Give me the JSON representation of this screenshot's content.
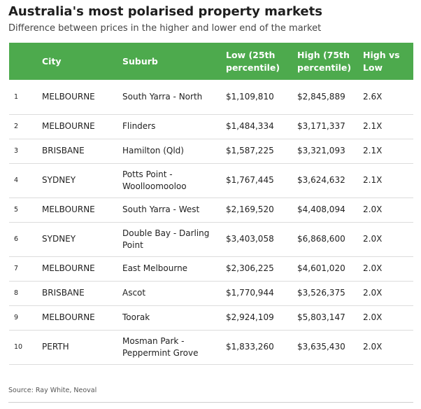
{
  "title": "Australia's most polarised property markets",
  "subtitle": "Difference between prices in the higher and lower end of the market",
  "columns": {
    "rank": "",
    "city": "City",
    "suburb": "Suburb",
    "low": "Low (25th percentile)",
    "high": "High (75th percentile)",
    "ratio": "High vs Low"
  },
  "source": "Source: Ray White, Neoval",
  "colors": {
    "header_background": "#4daa4d",
    "header_text": "#ffffff"
  },
  "chart_data": {
    "type": "table",
    "title": "Australia's most polarised property markets",
    "subtitle": "Difference between prices in the higher and lower end of the market",
    "columns": [
      "",
      "City",
      "Suburb",
      "Low (25th percentile)",
      "High (75th percentile)",
      "High vs Low"
    ],
    "rows": [
      [
        "1",
        "MELBOURNE",
        "South Yarra - North",
        "$1,109,810",
        "$2,845,889",
        "2.6X"
      ],
      [
        "2",
        "MELBOURNE",
        "Flinders",
        "$1,484,334",
        "$3,171,337",
        "2.1X"
      ],
      [
        "3",
        "BRISBANE",
        "Hamilton (Qld)",
        "$1,587,225",
        "$3,321,093",
        "2.1X"
      ],
      [
        "4",
        "SYDNEY",
        "Potts Point - Woolloomooloo",
        "$1,767,445",
        "$3,624,632",
        "2.1X"
      ],
      [
        "5",
        "MELBOURNE",
        "South Yarra - West",
        "$2,169,520",
        "$4,408,094",
        "2.0X"
      ],
      [
        "6",
        "SYDNEY",
        "Double Bay - Darling Point",
        "$3,403,058",
        "$6,868,600",
        "2.0X"
      ],
      [
        "7",
        "MELBOURNE",
        "East Melbourne",
        "$2,306,225",
        "$4,601,020",
        "2.0X"
      ],
      [
        "8",
        "BRISBANE",
        "Ascot",
        "$1,770,944",
        "$3,526,375",
        "2.0X"
      ],
      [
        "9",
        "MELBOURNE",
        "Toorak",
        "$2,924,109",
        "$5,803,147",
        "2.0X"
      ],
      [
        "10",
        "PERTH",
        "Mosman Park - Peppermint Grove",
        "$1,833,260",
        "$3,635,430",
        "2.0X"
      ]
    ],
    "source": "Source: Ray White, Neoval"
  }
}
